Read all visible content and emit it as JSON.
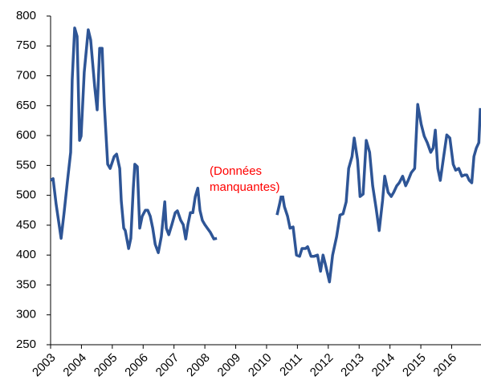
{
  "chart_data": {
    "type": "line",
    "xlim": [
      2003,
      2016.95
    ],
    "xticks": [
      2003,
      2004,
      2005,
      2006,
      2007,
      2008,
      2009,
      2010,
      2011,
      2012,
      2013,
      2014,
      2015,
      2016
    ],
    "ylim": [
      250,
      800
    ],
    "yticks": [
      250,
      300,
      350,
      400,
      450,
      500,
      550,
      600,
      650,
      700,
      750,
      800
    ],
    "grid": false,
    "annotation_lines": [
      "(Données",
      "manquantes)"
    ],
    "annotation_color": "#ff0000",
    "x": [
      2003,
      2003.08,
      2003.18,
      2003.34,
      2003.44,
      2003.55,
      2003.65,
      2003.7,
      2003.78,
      2003.86,
      2003.94,
      2003.99,
      2004.09,
      2004.22,
      2004.3,
      2004.43,
      2004.51,
      2004.59,
      2004.67,
      2004.74,
      2004.85,
      2004.93,
      2005.06,
      2005.14,
      2005.24,
      2005.29,
      2005.37,
      2005.42,
      2005.53,
      2005.6,
      2005.68,
      2005.73,
      2005.81,
      2005.89,
      2005.97,
      2006.07,
      2006.15,
      2006.23,
      2006.31,
      2006.39,
      2006.49,
      2006.59,
      2006.7,
      2006.75,
      2006.83,
      2006.93,
      2007.04,
      2007.11,
      2007.22,
      2007.3,
      2007.38,
      2007.45,
      2007.53,
      2007.61,
      2007.69,
      2007.77,
      2007.84,
      2007.92,
      2008,
      2008.08,
      2008.18,
      2008.29,
      2008.39,
      2009.5,
      2010.34,
      2010.42,
      2010.5,
      2010.58,
      2010.68,
      2010.76,
      2010.86,
      2010.97,
      2011.07,
      2011.15,
      2011.26,
      2011.33,
      2011.44,
      2011.54,
      2011.65,
      2011.75,
      2011.83,
      2011.91,
      2012.04,
      2012.14,
      2012.27,
      2012.38,
      2012.48,
      2012.58,
      2012.66,
      2012.77,
      2012.84,
      2012.95,
      2013.03,
      2013.13,
      2013.23,
      2013.34,
      2013.44,
      2013.55,
      2013.65,
      2013.76,
      2013.83,
      2013.94,
      2014.04,
      2014.12,
      2014.22,
      2014.3,
      2014.41,
      2014.51,
      2014.59,
      2014.69,
      2014.8,
      2014.9,
      2015.01,
      2015.11,
      2015.21,
      2015.32,
      2015.4,
      2015.47,
      2015.55,
      2015.63,
      2015.73,
      2015.84,
      2015.94,
      2016.05,
      2016.13,
      2016.23,
      2016.33,
      2016.41,
      2016.49,
      2016.57,
      2016.65,
      2016.72,
      2016.8,
      2016.88,
      2016.93
    ],
    "series": [
      {
        "color": "#2e5596",
        "values": [
          525,
          528,
          485,
          428,
          472,
          525,
          572,
          693,
          780,
          766,
          592,
          599,
          706,
          777,
          760,
          682,
          643,
          746,
          746,
          652,
          552,
          545,
          565,
          569,
          545,
          491,
          445,
          441,
          411,
          428,
          512,
          552,
          548,
          445,
          465,
          475,
          475,
          465,
          445,
          418,
          404,
          431,
          489,
          445,
          434,
          451,
          471,
          474,
          458,
          451,
          427,
          451,
          471,
          471,
          498,
          512,
          475,
          458,
          451,
          445,
          438,
          427,
          428,
          null,
          467,
          485,
          505,
          481,
          465,
          445,
          447,
          400,
          398,
          411,
          411,
          414,
          398,
          398,
          400,
          373,
          400,
          384,
          355,
          400,
          431,
          467,
          469,
          489,
          545,
          565,
          596,
          559,
          498,
          502,
          592,
          572,
          516,
          478,
          441,
          491,
          532,
          505,
          498,
          505,
          516,
          521,
          532,
          516,
          525,
          538,
          545,
          652,
          619,
          599,
          588,
          572,
          579,
          609,
          545,
          525,
          561,
          601,
          596,
          552,
          542,
          545,
          532,
          534,
          534,
          525,
          521,
          565,
          579,
          588,
          646
        ]
      }
    ]
  }
}
